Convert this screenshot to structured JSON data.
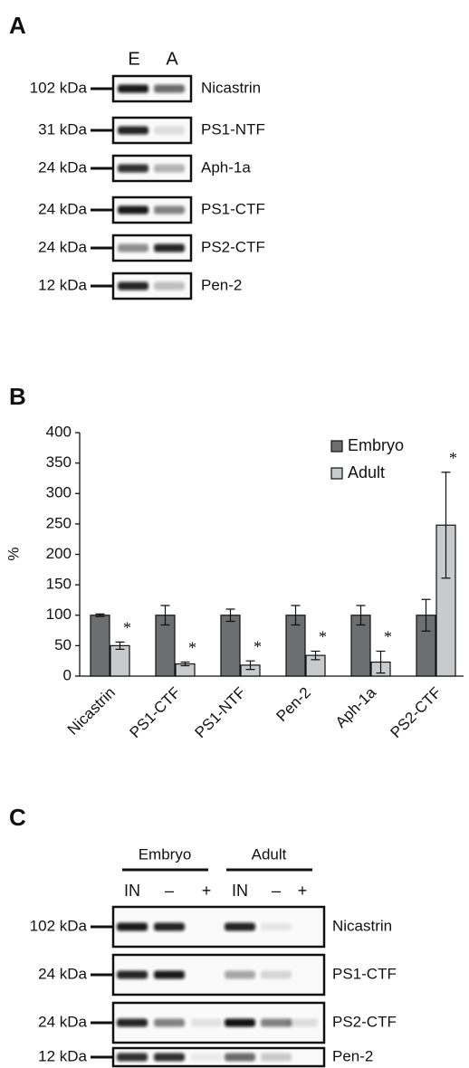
{
  "panel_a": {
    "label": "A",
    "lanes": [
      "E",
      "A"
    ],
    "blots": [
      {
        "marker": "102 kDa",
        "protein": "Nicastrin"
      },
      {
        "marker": "31 kDa",
        "protein": "PS1-NTF"
      },
      {
        "marker": "24 kDa",
        "protein": "Aph-1a"
      },
      {
        "marker": "24 kDa",
        "protein": "PS1-CTF"
      },
      {
        "marker": "24 kDa",
        "protein": "PS2-CTF"
      },
      {
        "marker": "12 kDa",
        "protein": "Pen-2"
      }
    ]
  },
  "chart_data": {
    "type": "bar",
    "panel_label": "B",
    "ylabel": "%",
    "categories": [
      "Nicastrin",
      "PS1-CTF",
      "PS1-NTF",
      "Pen-2",
      "Aph-1a",
      "PS2-CTF"
    ],
    "series": [
      {
        "name": "Embryo",
        "color": "#6d6e70",
        "values": [
          100,
          100,
          100,
          100,
          100,
          100
        ],
        "errors": [
          2,
          16,
          10,
          16,
          16,
          26
        ]
      },
      {
        "name": "Adult",
        "color": "#c9cacc",
        "values": [
          50,
          20,
          18,
          34,
          23,
          248
        ],
        "errors": [
          6,
          3,
          7,
          7,
          18,
          87
        ],
        "annotations": [
          "*",
          "*",
          "*",
          "*",
          "*",
          "*"
        ]
      }
    ],
    "ylim": [
      0,
      400
    ],
    "yticks": [
      0,
      50,
      100,
      150,
      200,
      250,
      300,
      350,
      400
    ],
    "legend": "upper right"
  },
  "panel_c": {
    "label": "C",
    "groups": [
      {
        "name": "Embryo",
        "lanes": [
          "IN",
          "–",
          "+"
        ]
      },
      {
        "name": "Adult",
        "lanes": [
          "IN",
          "–",
          "+"
        ]
      }
    ],
    "blots": [
      {
        "marker": "102 kDa",
        "protein": "Nicastrin"
      },
      {
        "marker": "24 kDa",
        "protein": "PS1-CTF"
      },
      {
        "marker": "24 kDa",
        "protein": "PS2-CTF"
      },
      {
        "marker": "12 kDa",
        "protein": "Pen-2"
      }
    ]
  }
}
